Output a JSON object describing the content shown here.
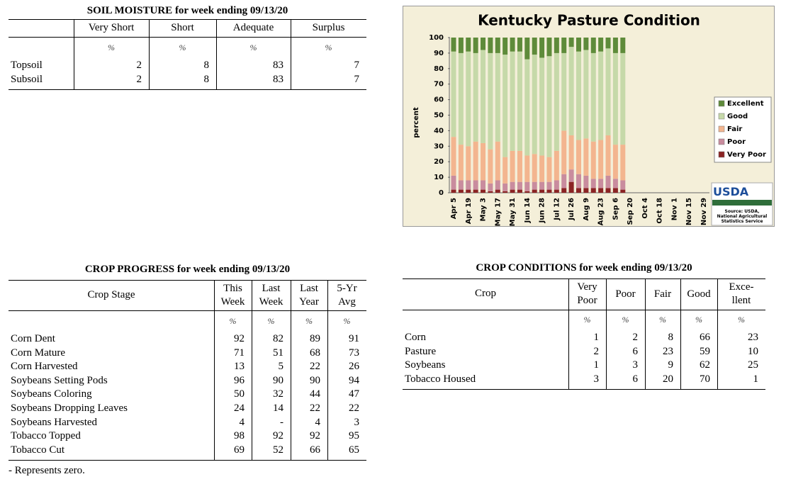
{
  "soil_moisture": {
    "title": "SOIL MOISTURE for week ending 09/13/20",
    "columns": [
      [
        "Very Short"
      ],
      [
        "Short"
      ],
      [
        "Adequate"
      ],
      [
        "Surplus"
      ]
    ],
    "units": [
      "%",
      "%",
      "%",
      "%"
    ],
    "rows": [
      {
        "label": "Topsoil",
        "values": [
          2,
          8,
          83,
          7
        ]
      },
      {
        "label": "Subsoil",
        "values": [
          2,
          8,
          83,
          7
        ]
      }
    ]
  },
  "chart_data": {
    "type": "stacked_bar",
    "title": "Kentucky Pasture Condition",
    "ylabel": "percent",
    "categories": [
      "Apr 5",
      null,
      "Apr 19",
      null,
      "May 3",
      null,
      "May 17",
      null,
      "May 31",
      null,
      "Jun 14",
      null,
      "Jun 28",
      null,
      "Jul 12",
      null,
      "Jul 26",
      null,
      "Aug 9",
      null,
      "Aug 23",
      null,
      "Sep 6",
      null,
      "Sep 20",
      null,
      "Oct 4",
      null,
      "Oct 18",
      null,
      "Nov 1",
      null,
      "Nov 15",
      null,
      "Nov 29"
    ],
    "series": [
      {
        "name": "Excellent",
        "color": "#5e8b3a",
        "values": [
          9,
          10,
          9,
          10,
          8,
          10,
          10,
          11,
          9,
          9,
          14,
          11,
          13,
          12,
          10,
          10,
          6,
          9,
          8,
          10,
          9,
          7,
          10,
          10,
          null,
          null,
          null,
          null,
          null,
          null,
          null,
          null,
          null,
          null,
          null
        ]
      },
      {
        "name": "Good",
        "color": "#c6d9a9",
        "values": [
          55,
          59,
          61,
          57,
          60,
          62,
          57,
          66,
          64,
          64,
          62,
          64,
          63,
          65,
          63,
          50,
          57,
          57,
          57,
          57,
          57,
          56,
          59,
          59,
          null,
          null,
          null,
          null,
          null,
          null,
          null,
          null,
          null,
          null,
          null
        ]
      },
      {
        "name": "Fair",
        "color": "#f3b58f",
        "values": [
          25,
          23,
          22,
          25,
          24,
          22,
          25,
          17,
          20,
          20,
          17,
          18,
          17,
          16,
          19,
          28,
          22,
          22,
          24,
          24,
          25,
          26,
          22,
          23,
          null,
          null,
          null,
          null,
          null,
          null,
          null,
          null,
          null,
          null,
          null
        ]
      },
      {
        "name": "Poor",
        "color": "#c98c9e",
        "values": [
          9,
          6,
          6,
          6,
          6,
          5,
          6,
          5,
          5,
          5,
          6,
          5,
          5,
          5,
          6,
          9,
          8,
          9,
          8,
          6,
          6,
          8,
          6,
          6,
          null,
          null,
          null,
          null,
          null,
          null,
          null,
          null,
          null,
          null,
          null
        ]
      },
      {
        "name": "Very Poor",
        "color": "#8b2424",
        "values": [
          2,
          2,
          2,
          2,
          2,
          1,
          2,
          1,
          2,
          2,
          1,
          2,
          2,
          2,
          2,
          3,
          7,
          3,
          3,
          3,
          3,
          3,
          3,
          2,
          null,
          null,
          null,
          null,
          null,
          null,
          null,
          null,
          null,
          null,
          null
        ]
      }
    ],
    "ylim": [
      0,
      100
    ],
    "yticks": [
      0,
      10,
      20,
      30,
      40,
      50,
      60,
      70,
      80,
      90,
      100
    ],
    "legend": "right",
    "logo": "USDA",
    "source": [
      "Source: USDA,",
      "National Agricultural",
      "Statistics Service"
    ]
  },
  "crop_progress": {
    "title": "CROP PROGRESS for week ending 09/13/20",
    "stub": "Crop Stage",
    "columns": [
      [
        "This",
        "Week"
      ],
      [
        "Last",
        "Week"
      ],
      [
        "Last",
        "Year"
      ],
      [
        "5-Yr",
        "Avg"
      ]
    ],
    "units": [
      "%",
      "%",
      "%",
      "%"
    ],
    "rows": [
      {
        "label": "Corn Dent",
        "values": [
          92,
          82,
          89,
          91
        ]
      },
      {
        "label": "Corn Mature",
        "values": [
          71,
          51,
          68,
          73
        ]
      },
      {
        "label": "Corn Harvested",
        "values": [
          13,
          5,
          22,
          26
        ]
      },
      {
        "label": "Soybeans Setting Pods",
        "values": [
          96,
          90,
          90,
          94
        ]
      },
      {
        "label": "Soybeans Coloring",
        "values": [
          50,
          32,
          44,
          47
        ]
      },
      {
        "label": "Soybeans Dropping Leaves",
        "values": [
          24,
          14,
          22,
          22
        ]
      },
      {
        "label": "Soybeans Harvested",
        "values": [
          4,
          "-",
          4,
          3
        ]
      },
      {
        "label": "Tobacco Topped",
        "values": [
          98,
          92,
          92,
          95
        ]
      },
      {
        "label": "Tobacco Cut",
        "values": [
          69,
          52,
          66,
          65
        ]
      }
    ],
    "footnote": "- Represents zero."
  },
  "crop_conditions": {
    "title": "CROP CONDITIONS for week ending 09/13/20",
    "stub": "Crop",
    "columns": [
      [
        "Very",
        "Poor"
      ],
      [
        "Poor"
      ],
      [
        "Fair"
      ],
      [
        "Good"
      ],
      [
        "Exce-",
        "llent"
      ]
    ],
    "units": [
      "%",
      "%",
      "%",
      "%",
      "%"
    ],
    "rows": [
      {
        "label": "Corn",
        "values": [
          1,
          2,
          8,
          66,
          23
        ]
      },
      {
        "label": "Pasture",
        "values": [
          2,
          6,
          23,
          59,
          10
        ]
      },
      {
        "label": "Soybeans",
        "values": [
          1,
          3,
          9,
          62,
          25
        ]
      },
      {
        "label": "Tobacco Housed",
        "values": [
          3,
          6,
          20,
          70,
          1
        ]
      }
    ]
  }
}
